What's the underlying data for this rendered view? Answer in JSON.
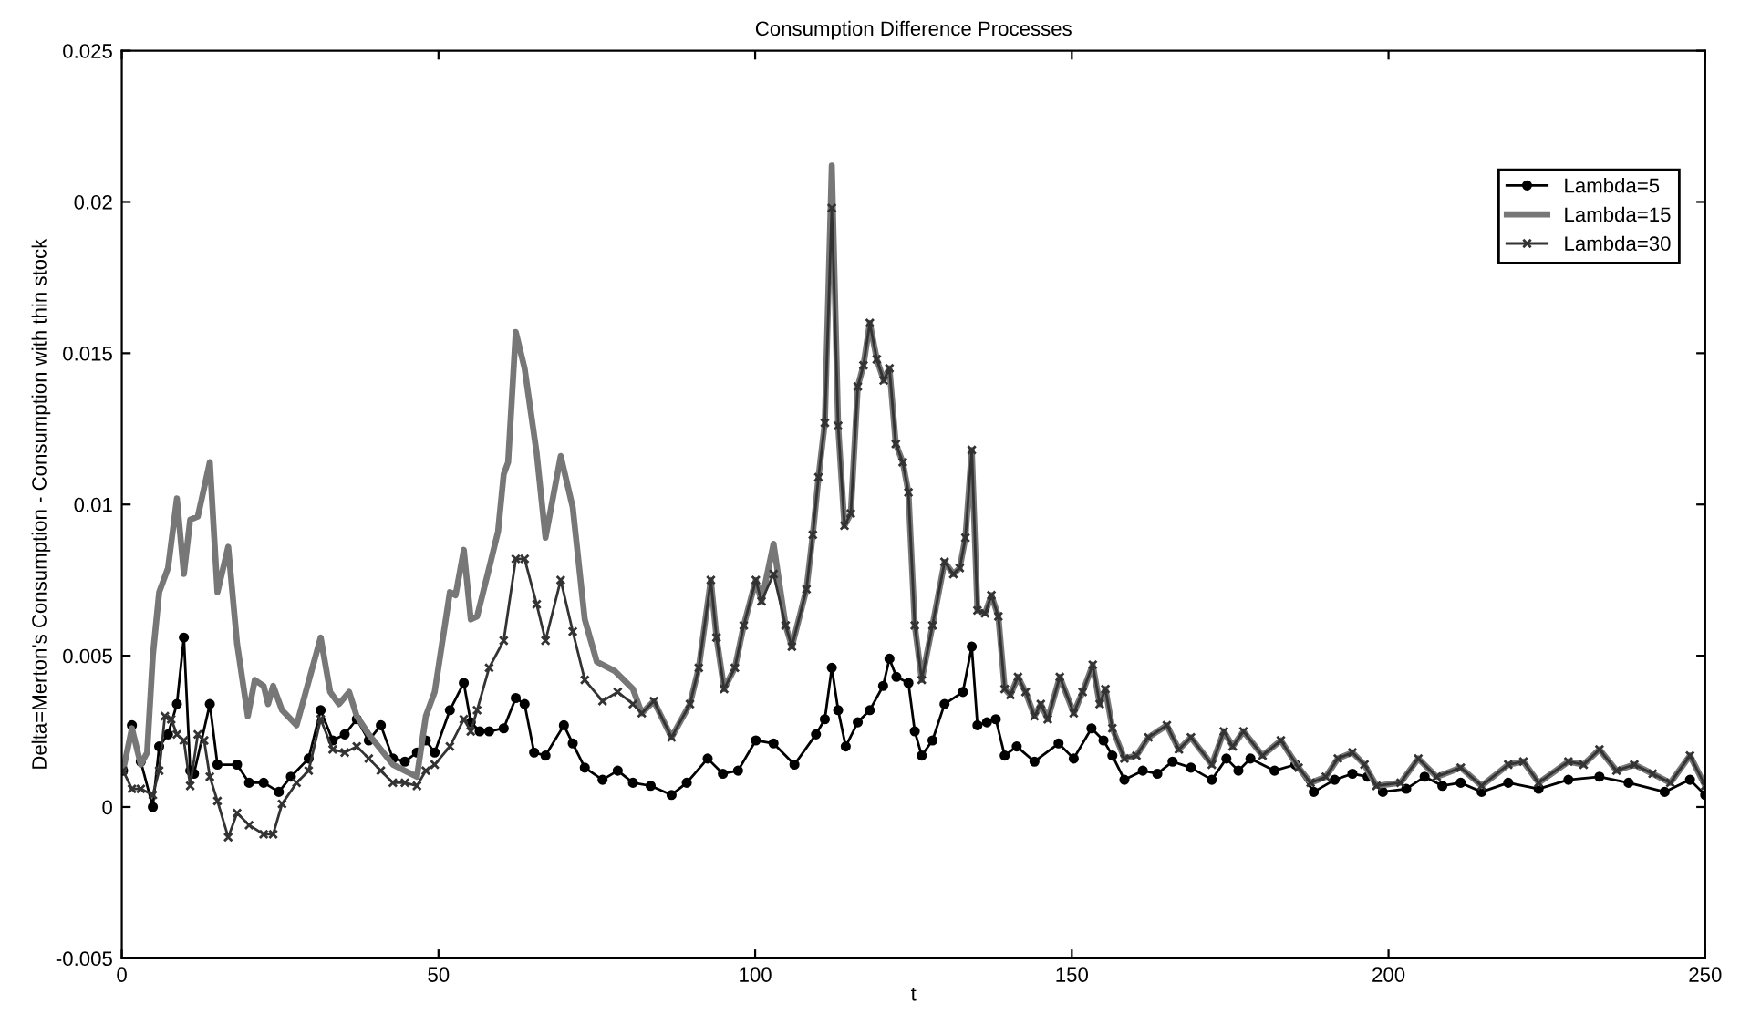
{
  "chart_data": {
    "type": "line",
    "title": "Consumption Difference Processes",
    "xlabel": "t",
    "ylabel": "Delta=Merton's Consumption - Consumption with thin stock",
    "xlim": [
      0,
      250
    ],
    "xticks": [
      0,
      50,
      100,
      150,
      200,
      250
    ],
    "ylim": [
      -0.005,
      0.025
    ],
    "yticks": [
      -0.005,
      0,
      0.005,
      0.01,
      0.015,
      0.02,
      0.025
    ],
    "grid": false,
    "legend": "top right",
    "line_style": "solid",
    "series": [
      {
        "name": "Lambda=5",
        "color": "#000000",
        "marker": "circle",
        "x": [
          0.2,
          1.6,
          3.0,
          4.9,
          5.9,
          7.3,
          8.7,
          9.8,
          10.8,
          11.4,
          13.9,
          15.1,
          18.2,
          20.1,
          22.4,
          24.8,
          26.7,
          29.5,
          31.4,
          33.3,
          35.2,
          37.1,
          39.0,
          40.9,
          42.8,
          44.7,
          46.6,
          48.0,
          49.4,
          51.8,
          54.0,
          55.1,
          56.5,
          58.0,
          60.3,
          62.2,
          63.6,
          65.1,
          66.9,
          69.8,
          71.2,
          73.1,
          75.9,
          78.3,
          80.7,
          83.5,
          86.8,
          89.2,
          92.5,
          94.9,
          97.3,
          100.1,
          102.9,
          106.2,
          109.6,
          111.0,
          112.1,
          113.1,
          114.3,
          116.2,
          118.1,
          120.2,
          121.2,
          122.3,
          124.2,
          125.2,
          126.3,
          128.0,
          129.9,
          132.8,
          134.2,
          135.1,
          136.6,
          138.0,
          139.4,
          141.3,
          144.1,
          147.9,
          150.3,
          153.1,
          155.0,
          156.4,
          158.3,
          161.2,
          163.5,
          165.9,
          168.8,
          172.1,
          174.4,
          176.3,
          178.2,
          182.0,
          185.3,
          188.2,
          191.5,
          194.3,
          196.7,
          199.1,
          202.8,
          205.7,
          208.5,
          211.4,
          214.7,
          218.9,
          223.7,
          228.4,
          233.3,
          237.9,
          243.6,
          247.6,
          250
        ],
        "values": [
          0.0012,
          0.0027,
          0.0015,
          0.0,
          0.002,
          0.0024,
          0.0034,
          0.0056,
          0.0012,
          0.0011,
          0.0034,
          0.0014,
          0.0014,
          0.0008,
          0.0008,
          0.0005,
          0.001,
          0.0016,
          0.0032,
          0.0022,
          0.0024,
          0.0029,
          0.0022,
          0.0027,
          0.0016,
          0.0015,
          0.0018,
          0.0022,
          0.0018,
          0.0032,
          0.0041,
          0.0028,
          0.0025,
          0.0025,
          0.0026,
          0.0036,
          0.0034,
          0.0018,
          0.0017,
          0.0027,
          0.0021,
          0.0013,
          0.0009,
          0.0012,
          0.0008,
          0.0007,
          0.0004,
          0.0008,
          0.0016,
          0.0011,
          0.0012,
          0.0022,
          0.0021,
          0.0014,
          0.0024,
          0.0029,
          0.0046,
          0.0032,
          0.002,
          0.0028,
          0.0032,
          0.004,
          0.0049,
          0.0043,
          0.0041,
          0.0025,
          0.0017,
          0.0022,
          0.0034,
          0.0038,
          0.0053,
          0.0027,
          0.0028,
          0.0029,
          0.0017,
          0.002,
          0.0015,
          0.0021,
          0.0016,
          0.0026,
          0.0022,
          0.0017,
          0.0009,
          0.0012,
          0.0011,
          0.0015,
          0.0013,
          0.0009,
          0.0016,
          0.0012,
          0.0016,
          0.0012,
          0.0014,
          0.0005,
          0.0009,
          0.0011,
          0.001,
          0.0005,
          0.0006,
          0.001,
          0.0007,
          0.0008,
          0.0005,
          0.0008,
          0.0006,
          0.0009,
          0.001,
          0.0008,
          0.0005,
          0.0009,
          0.0004
        ]
      },
      {
        "name": "Lambda=15",
        "color": "#777777",
        "marker": "none",
        "x": [
          0.2,
          1.6,
          3.0,
          4.0,
          4.9,
          5.9,
          7.3,
          8.7,
          9.8,
          10.8,
          12.0,
          13.9,
          15.1,
          16.8,
          18.2,
          19.9,
          21.0,
          22.4,
          23.1,
          23.9,
          25.3,
          27.6,
          31.4,
          32.9,
          34.3,
          35.9,
          37.1,
          39.0,
          42.8,
          44.7,
          46.6,
          48.0,
          49.4,
          51.8,
          52.7,
          54.0,
          55.1,
          56.1,
          58.0,
          59.4,
          60.3,
          61.0,
          62.2,
          63.6,
          65.5,
          66.9,
          69.3,
          71.2,
          73.1,
          75.0,
          77.8,
          80.7,
          82.1,
          84.0,
          86.8,
          89.7,
          91.1,
          93.0,
          93.9,
          95.1,
          96.8,
          98.2,
          100.1,
          101.0,
          102.9,
          104.8,
          105.8,
          108.1,
          109.1,
          110.0,
          111.0,
          112.1,
          113.1,
          114.1,
          115.1,
          116.2,
          117.1,
          118.1,
          119.2,
          120.3,
          121.2,
          122.2,
          123.3,
          124.2,
          125.2,
          126.3,
          128.0,
          129.9,
          131.3,
          132.3,
          133.2,
          134.2,
          135.1,
          136.3,
          137.3,
          138.4,
          139.4,
          140.3,
          141.5,
          142.7,
          144.1,
          145.1,
          146.2,
          148.1,
          150.3,
          151.7,
          153.3,
          154.4,
          155.3,
          156.4,
          158.3,
          160.2,
          162.1,
          165.0,
          166.9,
          168.8,
          172.1,
          174.0,
          175.4,
          177.1,
          180.1,
          183.0,
          185.8,
          187.7,
          190.1,
          192.0,
          194.3,
          196.2,
          198.1,
          201.9,
          204.7,
          207.6,
          211.4,
          214.7,
          218.9,
          221.3,
          223.7,
          228.4,
          230.8,
          233.3,
          236.0,
          238.8,
          241.7,
          244.5,
          247.6,
          250
        ],
        "values": [
          0.0012,
          0.0026,
          0.0014,
          0.0018,
          0.005,
          0.0071,
          0.0079,
          0.0102,
          0.0077,
          0.0095,
          0.0096,
          0.0114,
          0.0071,
          0.0086,
          0.0054,
          0.003,
          0.0042,
          0.004,
          0.0034,
          0.004,
          0.0032,
          0.0027,
          0.0056,
          0.0038,
          0.0034,
          0.0038,
          0.003,
          0.0024,
          0.0014,
          0.0012,
          0.001,
          0.003,
          0.0038,
          0.0071,
          0.007,
          0.0085,
          0.0062,
          0.0063,
          0.0079,
          0.0091,
          0.011,
          0.0114,
          0.0157,
          0.0145,
          0.0117,
          0.0089,
          0.0116,
          0.0099,
          0.0062,
          0.0048,
          0.0045,
          0.0039,
          0.0031,
          0.0035,
          0.0023,
          0.0034,
          0.0046,
          0.0075,
          0.0056,
          0.0039,
          0.0046,
          0.006,
          0.0075,
          0.0068,
          0.0087,
          0.006,
          0.0053,
          0.0072,
          0.009,
          0.0109,
          0.0127,
          0.0212,
          0.0126,
          0.0093,
          0.0097,
          0.0139,
          0.0146,
          0.016,
          0.0148,
          0.0141,
          0.0145,
          0.012,
          0.0114,
          0.0104,
          0.006,
          0.0042,
          0.006,
          0.0081,
          0.0077,
          0.0079,
          0.0089,
          0.0118,
          0.0065,
          0.0064,
          0.007,
          0.0063,
          0.0039,
          0.0037,
          0.0043,
          0.0038,
          0.003,
          0.0034,
          0.0029,
          0.0043,
          0.0031,
          0.0038,
          0.0047,
          0.0034,
          0.0039,
          0.0026,
          0.0016,
          0.0017,
          0.0023,
          0.0027,
          0.0019,
          0.0023,
          0.0014,
          0.0025,
          0.002,
          0.0025,
          0.0017,
          0.0022,
          0.0013,
          0.0008,
          0.001,
          0.0016,
          0.0018,
          0.0014,
          0.0007,
          0.0008,
          0.0016,
          0.001,
          0.0013,
          0.0007,
          0.0014,
          0.0015,
          0.0008,
          0.0015,
          0.0014,
          0.0019,
          0.0012,
          0.0014,
          0.0011,
          0.0008,
          0.0017,
          0.0007
        ]
      },
      {
        "name": "Lambda=30",
        "color": "#333333",
        "marker": "cross",
        "x": [
          0.2,
          1.6,
          3.0,
          4.9,
          5.9,
          6.8,
          7.8,
          8.7,
          9.8,
          10.8,
          12.0,
          13.0,
          13.9,
          15.1,
          16.8,
          18.2,
          20.1,
          22.4,
          23.9,
          25.3,
          27.6,
          29.5,
          31.4,
          33.3,
          35.2,
          37.1,
          39.0,
          40.9,
          42.8,
          44.7,
          46.6,
          48.0,
          49.4,
          51.8,
          54.0,
          55.1,
          56.1,
          58.0,
          60.3,
          62.2,
          63.6,
          65.5,
          66.9,
          69.3,
          71.2,
          73.1,
          75.9,
          78.3,
          80.7,
          82.1,
          84.0,
          86.8,
          89.7,
          91.1,
          93.0,
          93.9,
          95.1,
          96.8,
          98.2,
          100.1,
          101.0,
          102.9,
          104.8,
          105.8,
          108.1,
          109.1,
          110.0,
          111.0,
          112.1,
          113.1,
          114.1,
          115.1,
          116.2,
          117.1,
          118.1,
          119.2,
          120.3,
          121.2,
          122.2,
          123.3,
          124.2,
          125.2,
          126.3,
          128.0,
          129.9,
          131.3,
          132.3,
          133.2,
          134.2,
          135.1,
          136.3,
          137.3,
          138.4,
          139.4,
          140.3,
          141.5,
          142.7,
          144.1,
          145.1,
          146.2,
          148.1,
          150.3,
          151.7,
          153.3,
          154.4,
          155.3,
          156.4,
          158.3,
          160.2,
          162.1,
          165.0,
          166.9,
          168.8,
          172.1,
          174.0,
          175.4,
          177.1,
          180.1,
          183.0,
          185.8,
          187.7,
          190.1,
          192.0,
          194.3,
          196.2,
          198.1,
          201.9,
          204.7,
          207.6,
          211.4,
          214.7,
          218.9,
          221.3,
          223.7,
          228.4,
          230.8,
          233.3,
          236.0,
          238.8,
          241.7,
          244.5,
          247.6,
          250
        ],
        "values": [
          0.0012,
          0.0006,
          0.0006,
          0.0004,
          0.0012,
          0.003,
          0.0029,
          0.0024,
          0.0022,
          0.0007,
          0.0024,
          0.0022,
          0.001,
          0.0002,
          -0.001,
          -0.0002,
          -0.0006,
          -0.0009,
          -0.0009,
          0.0001,
          0.0008,
          0.0012,
          0.0029,
          0.0019,
          0.0018,
          0.002,
          0.0016,
          0.0012,
          0.0008,
          0.0008,
          0.0007,
          0.0012,
          0.0014,
          0.002,
          0.0029,
          0.0025,
          0.0032,
          0.0046,
          0.0055,
          0.0082,
          0.0082,
          0.0067,
          0.0055,
          0.0075,
          0.0058,
          0.0042,
          0.0035,
          0.0038,
          0.0034,
          0.0031,
          0.0035,
          0.0023,
          0.0034,
          0.0046,
          0.0075,
          0.0056,
          0.0039,
          0.0046,
          0.006,
          0.0075,
          0.0068,
          0.0077,
          0.006,
          0.0053,
          0.0072,
          0.009,
          0.0109,
          0.0127,
          0.0198,
          0.0126,
          0.0093,
          0.0097,
          0.0139,
          0.0146,
          0.016,
          0.0148,
          0.0141,
          0.0145,
          0.012,
          0.0114,
          0.0104,
          0.006,
          0.0042,
          0.006,
          0.0081,
          0.0077,
          0.0079,
          0.0089,
          0.0118,
          0.0065,
          0.0064,
          0.007,
          0.0063,
          0.0039,
          0.0037,
          0.0043,
          0.0038,
          0.003,
          0.0034,
          0.0029,
          0.0043,
          0.0031,
          0.0038,
          0.0047,
          0.0034,
          0.0039,
          0.0026,
          0.0016,
          0.0017,
          0.0023,
          0.0027,
          0.0019,
          0.0023,
          0.0014,
          0.0025,
          0.002,
          0.0025,
          0.0017,
          0.0022,
          0.0013,
          0.0008,
          0.001,
          0.0016,
          0.0018,
          0.0014,
          0.0007,
          0.0008,
          0.0016,
          0.001,
          0.0013,
          0.0007,
          0.0014,
          0.0015,
          0.0008,
          0.0015,
          0.0014,
          0.0019,
          0.0012,
          0.0014,
          0.0011,
          0.0008,
          0.0017,
          0.0007
        ]
      }
    ]
  }
}
